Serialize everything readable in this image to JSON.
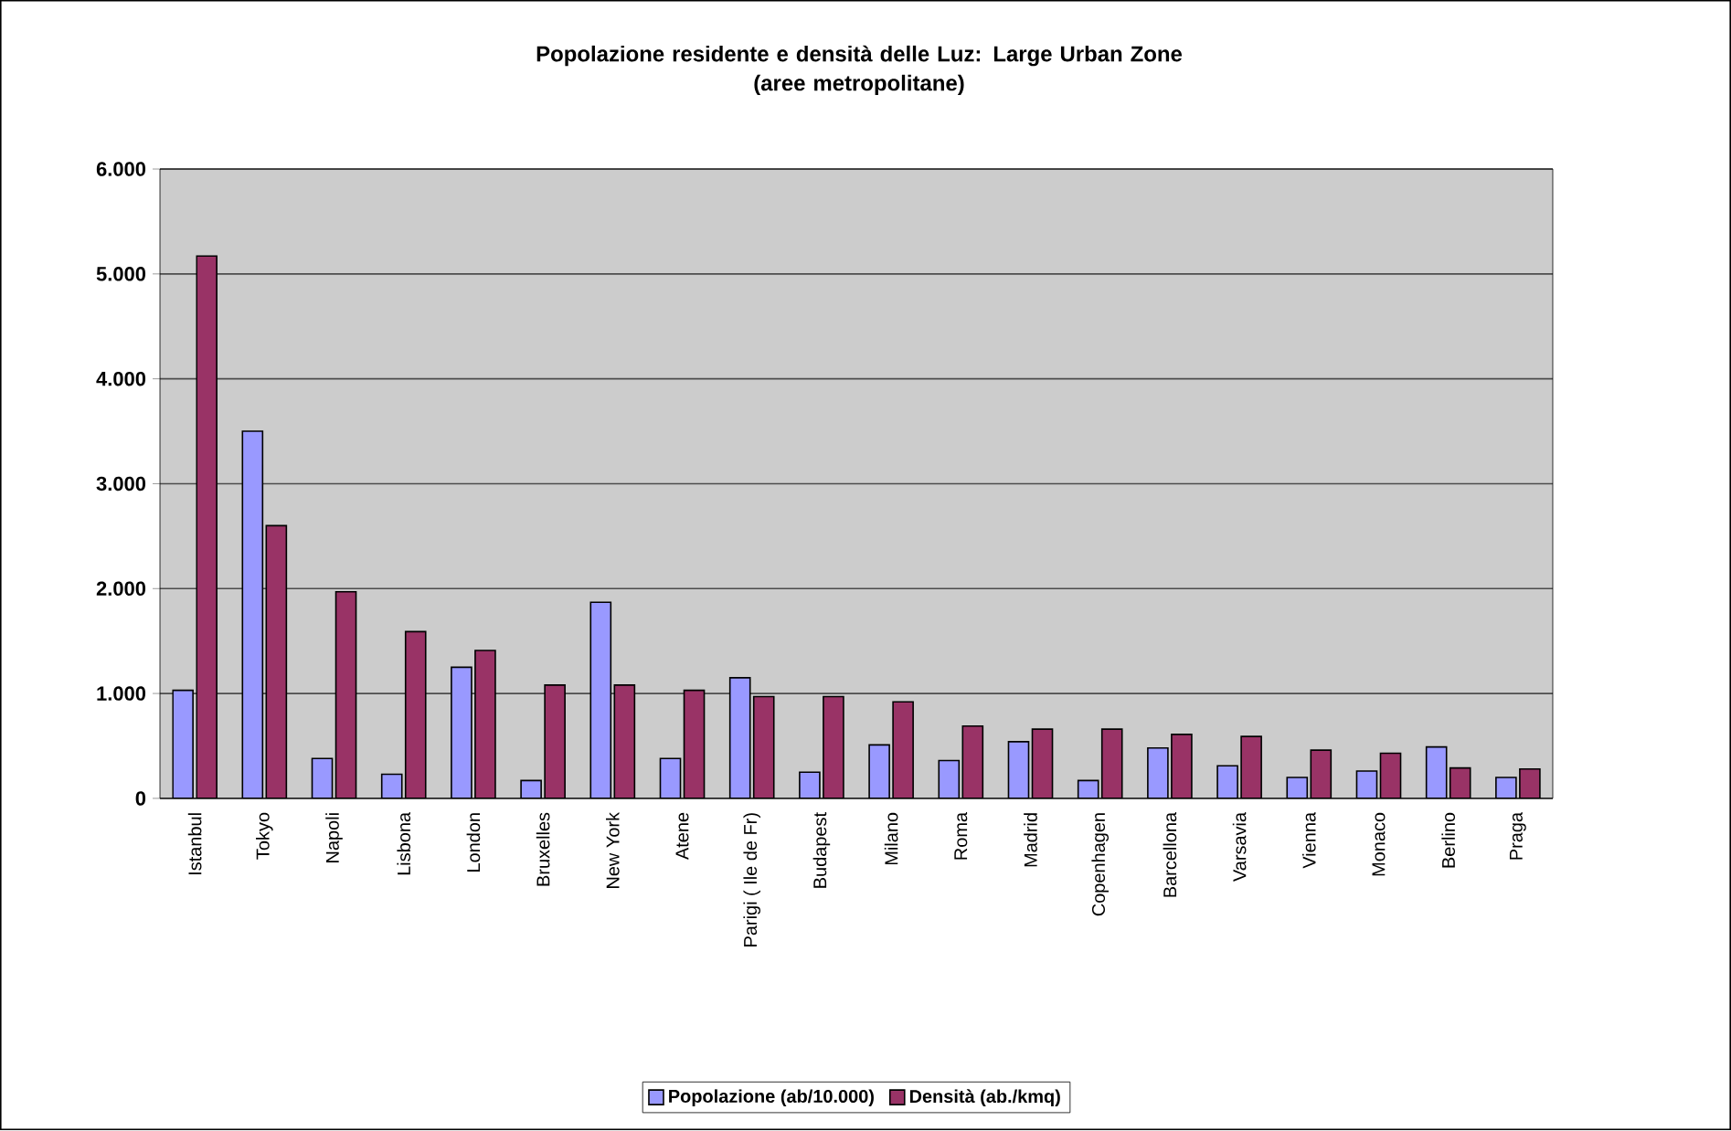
{
  "chart_data": {
    "type": "bar",
    "title": "Popolazione residente e densità delle Luz: Large Urban Zone\n(aree metropolitane)",
    "categories": [
      "Istanbul",
      "Tokyo",
      "Napoli",
      "Lisbona",
      "London",
      "Bruxelles",
      "New York",
      "Atene",
      "Parigi ( Ile de Fr)",
      "Budapest",
      "Milano",
      "Roma",
      "Madrid",
      "Copenhagen",
      "Barcellona",
      "Varsavia",
      "Vienna",
      "Monaco",
      "Berlino",
      "Praga"
    ],
    "series": [
      {
        "name": "Popolazione (ab/10.000)",
        "color": "#9999ff",
        "values": [
          1030,
          3500,
          380,
          230,
          1250,
          170,
          1870,
          380,
          1150,
          250,
          510,
          360,
          540,
          170,
          480,
          310,
          200,
          260,
          490,
          200
        ]
      },
      {
        "name": "Densità (ab./kmq)",
        "color": "#993366",
        "values": [
          5170,
          2600,
          1970,
          1590,
          1410,
          1080,
          1080,
          1030,
          970,
          970,
          920,
          690,
          660,
          660,
          610,
          590,
          460,
          430,
          290,
          280
        ]
      }
    ],
    "ylim": [
      0,
      6000
    ],
    "yticks": [
      {
        "value": 0,
        "label": "0"
      },
      {
        "value": 1000,
        "label": "1.000"
      },
      {
        "value": 2000,
        "label": "2.000"
      },
      {
        "value": 3000,
        "label": "3.000"
      },
      {
        "value": 4000,
        "label": "4.000"
      },
      {
        "value": 5000,
        "label": "5.000"
      },
      {
        "value": 6000,
        "label": "6.000"
      }
    ],
    "grid": "y",
    "legend": "bottom"
  }
}
